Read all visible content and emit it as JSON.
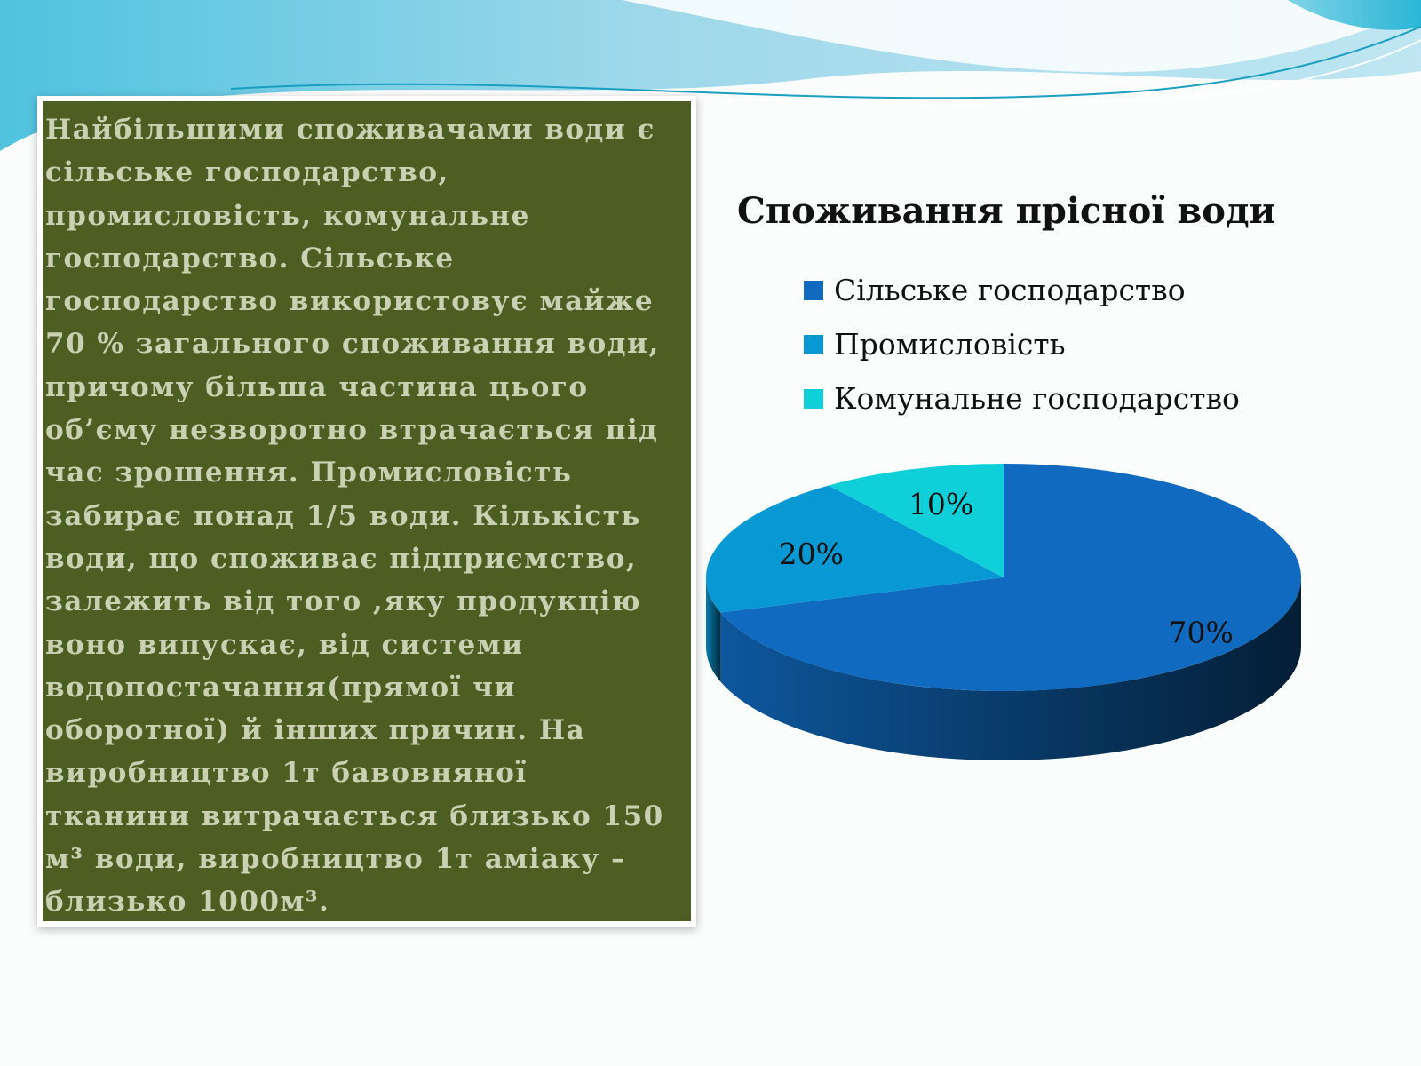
{
  "text_panel": {
    "lines": [
      "Найбільшими споживачами води є",
      "сільське господарство,",
      "промисловість, комунальне",
      "господарство. Сільське",
      "господарство використовує майже",
      "70 % загального споживання води,",
      "причому більша частина цього",
      "об’єму незворотно втрачається під",
      "час зрошення. Промисловість",
      "забирає понад 1/5 води. Кількість",
      "води, що споживає підприємство,",
      "залежить від того ,яку продукцію",
      "воно випускає, від системи",
      "водопостачання(прямої чи",
      "оборотної) й інших причин. На",
      "виробництво 1т бавовняної",
      "тканини витрачається близько 150",
      "м³ води, виробництво 1т аміаку –",
      "близько 1000м³."
    ],
    "background_color": "#4e5e22",
    "text_color": "#cad0b2"
  },
  "chart_data": {
    "type": "pie",
    "style": "3d",
    "title": "Споживання прісної води",
    "categories": [
      "Сільське господарство",
      "Промисловість",
      "Комунальне господарство"
    ],
    "values": [
      70,
      20,
      10
    ],
    "data_labels": [
      "70%",
      "20%",
      "10%"
    ],
    "colors": [
      "#106abf",
      "#0899d4",
      "#0fcfd8"
    ],
    "legend_position": "top"
  }
}
